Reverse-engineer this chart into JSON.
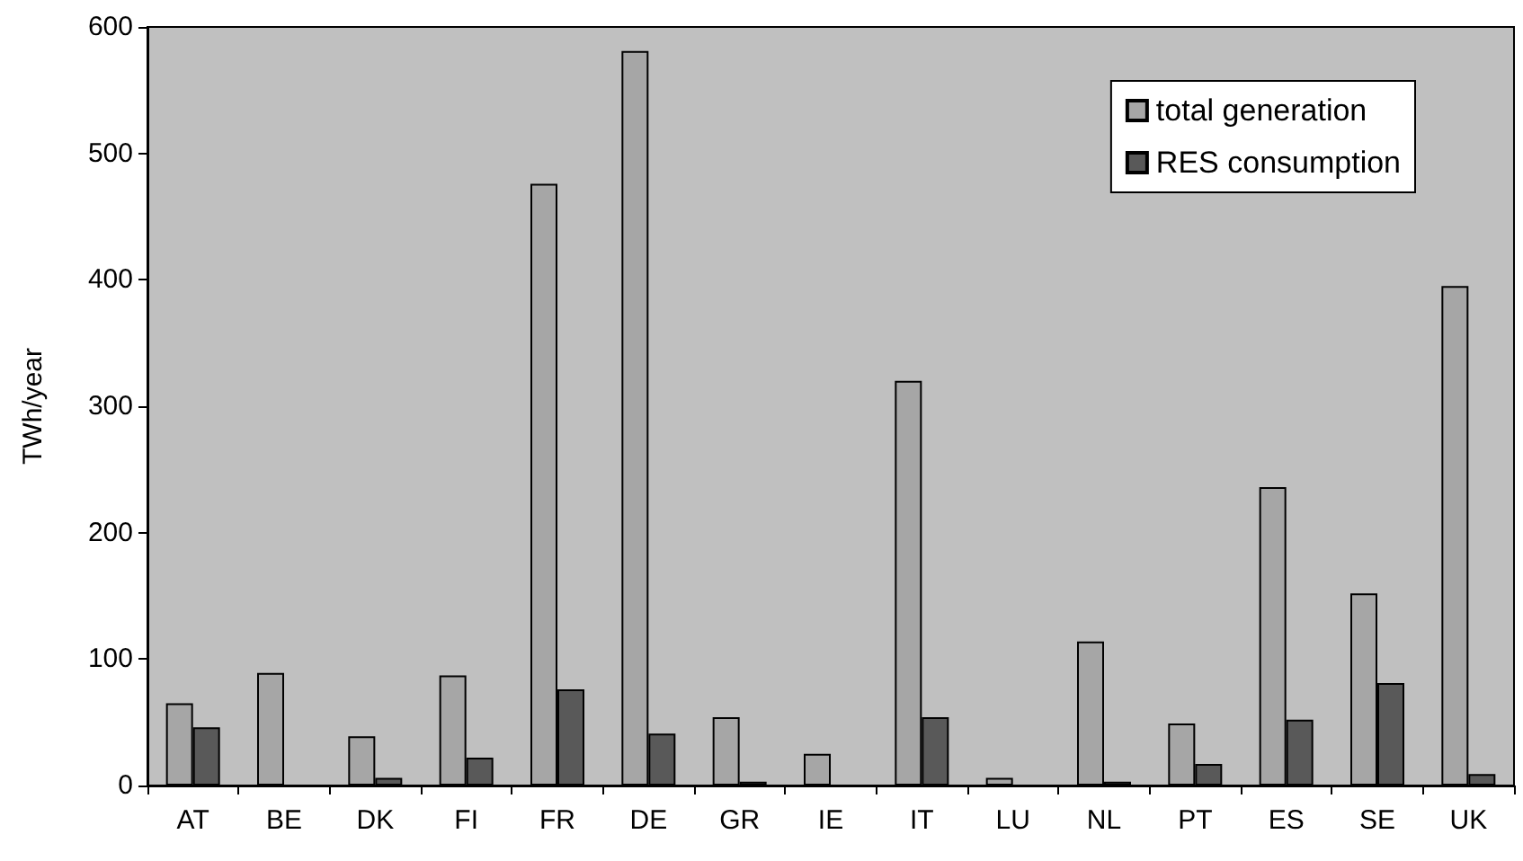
{
  "chart_data": {
    "type": "bar",
    "ylabel": "TWh/year",
    "categories": [
      "AT",
      "BE",
      "DK",
      "FI",
      "FR",
      "DE",
      "GR",
      "IE",
      "IT",
      "LU",
      "NL",
      "PT",
      "ES",
      "SE",
      "UK"
    ],
    "series": [
      {
        "name": "total generation",
        "color": "#a6a6a6",
        "values": [
          65,
          89,
          39,
          87,
          476,
          581,
          54,
          25,
          320,
          6,
          114,
          49,
          236,
          152,
          395
        ]
      },
      {
        "name": "RES consumption",
        "color": "#595959",
        "values": [
          46,
          null,
          6,
          22,
          76,
          41,
          3,
          null,
          54,
          null,
          3,
          17,
          52,
          81,
          9
        ]
      }
    ],
    "ylim": [
      0,
      600
    ],
    "yticks": [
      0,
      100,
      200,
      300,
      400,
      500,
      600
    ],
    "legend": "top right",
    "grid": false
  }
}
